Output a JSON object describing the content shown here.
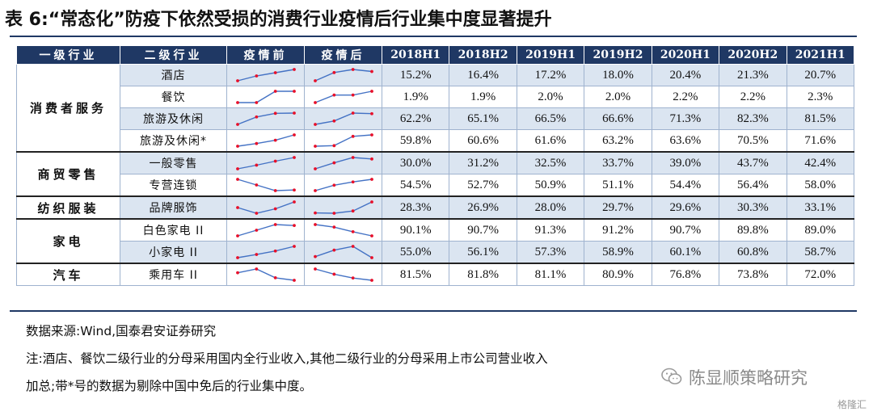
{
  "title": "表 6:“常态化”防疫下依然受损的消费行业疫情后行业集中度显著提升",
  "columns": [
    "一级行业",
    "二级行业",
    "疫情前",
    "疫情后",
    "2018H1",
    "2018H2",
    "2019H1",
    "2019H2",
    "2020H1",
    "2020H2",
    "2021H1"
  ],
  "groups": [
    {
      "name": "消费者服务",
      "rows": [
        {
          "name": "酒店",
          "values": [
            "15.2%",
            "16.4%",
            "17.2%",
            "18.0%",
            "20.4%",
            "21.3%",
            "20.7%"
          ],
          "nums": [
            15.2,
            16.4,
            17.2,
            18.0,
            20.4,
            21.3,
            20.7
          ]
        },
        {
          "name": "餐饮",
          "values": [
            "1.9%",
            "1.9%",
            "2.0%",
            "2.0%",
            "2.2%",
            "2.2%",
            "2.3%"
          ],
          "nums": [
            1.9,
            1.9,
            2.0,
            2.0,
            2.2,
            2.2,
            2.3
          ]
        },
        {
          "name": "旅游及休闲",
          "values": [
            "62.2%",
            "65.1%",
            "66.5%",
            "66.6%",
            "71.3%",
            "82.3%",
            "81.5%"
          ],
          "nums": [
            62.2,
            65.1,
            66.5,
            66.6,
            71.3,
            82.3,
            81.5
          ]
        },
        {
          "name": "旅游及休闲*",
          "values": [
            "59.8%",
            "60.6%",
            "61.6%",
            "63.2%",
            "63.6%",
            "70.5%",
            "71.6%"
          ],
          "nums": [
            59.8,
            60.6,
            61.6,
            63.2,
            63.6,
            70.5,
            71.6
          ]
        }
      ]
    },
    {
      "name": "商贸零售",
      "rows": [
        {
          "name": "一般零售",
          "values": [
            "30.0%",
            "31.2%",
            "32.5%",
            "33.7%",
            "39.0%",
            "43.7%",
            "42.4%"
          ],
          "nums": [
            30.0,
            31.2,
            32.5,
            33.7,
            39.0,
            43.7,
            42.4
          ]
        },
        {
          "name": "专营连锁",
          "values": [
            "54.5%",
            "52.7%",
            "50.9%",
            "51.1%",
            "54.4%",
            "56.4%",
            "58.0%"
          ],
          "nums": [
            54.5,
            52.7,
            50.9,
            51.1,
            54.4,
            56.4,
            58.0
          ]
        }
      ]
    },
    {
      "name": "纺织服装",
      "rows": [
        {
          "name": "品牌服饰",
          "values": [
            "28.3%",
            "26.9%",
            "28.0%",
            "29.7%",
            "29.6%",
            "30.3%",
            "33.1%"
          ],
          "nums": [
            28.3,
            26.9,
            28.0,
            29.7,
            29.6,
            30.3,
            33.1
          ]
        }
      ]
    },
    {
      "name": "家电",
      "rows": [
        {
          "name": "白色家电 II",
          "values": [
            "90.1%",
            "90.7%",
            "91.3%",
            "91.2%",
            "90.7%",
            "89.8%",
            "89.0%"
          ],
          "nums": [
            90.1,
            90.7,
            91.3,
            91.2,
            90.7,
            89.8,
            89.0
          ]
        },
        {
          "name": "小家电 II",
          "values": [
            "55.0%",
            "56.1%",
            "57.3%",
            "58.9%",
            "60.1%",
            "60.8%",
            "58.7%"
          ],
          "nums": [
            55.0,
            56.1,
            57.3,
            58.9,
            60.1,
            60.8,
            58.7
          ]
        }
      ]
    },
    {
      "name": "汽车",
      "rows": [
        {
          "name": "乘用车 II",
          "values": [
            "81.5%",
            "81.8%",
            "81.1%",
            "80.9%",
            "76.8%",
            "73.8%",
            "72.0%"
          ],
          "nums": [
            81.5,
            81.8,
            81.1,
            80.9,
            76.8,
            73.8,
            72.0
          ]
        }
      ]
    }
  ],
  "source": "数据来源:Wind,国泰君安证券研究",
  "note_line1": "注:酒店、餐饮二级行业的分母采用国内全行业收入,其他二级行业的分母采用上市公司营业收入",
  "note_line2": "加总;带*号的数据为剔除中国中免后的行业集中度。",
  "watermark": "陈显顺策略研究",
  "brand": "格隆汇",
  "colors": {
    "header": "#1f3864",
    "shade": "#dbe5f1",
    "spark_line": "#4472c4",
    "spark_marker": "#e8102a"
  }
}
